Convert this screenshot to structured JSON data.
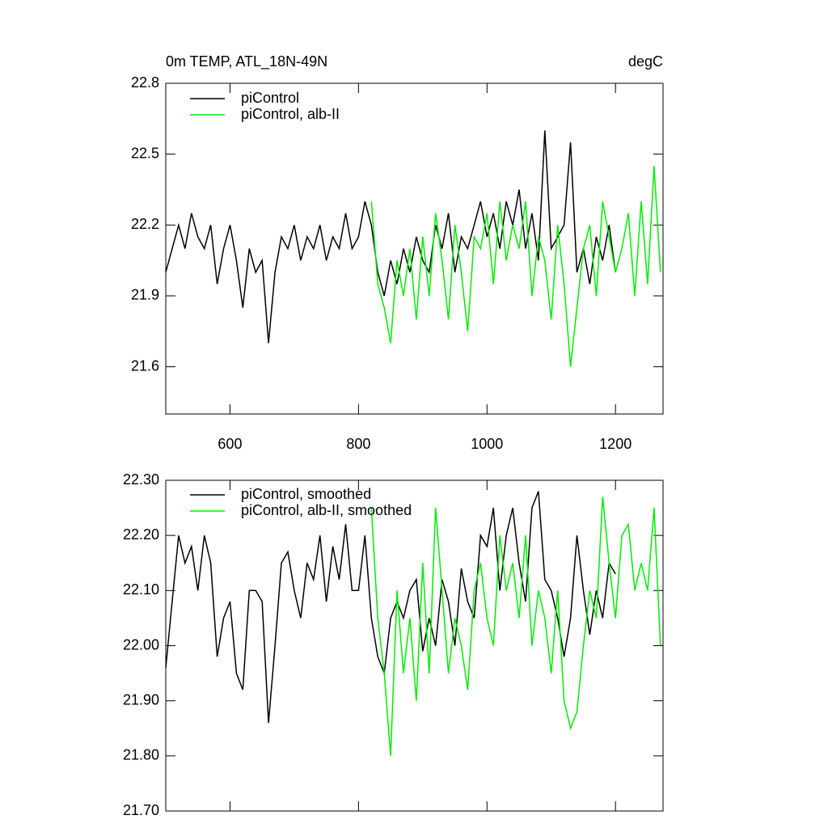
{
  "chart_data": [
    {
      "type": "line",
      "title": "0m TEMP, ATL_18N-49N",
      "units": "degC",
      "x": [
        500,
        510,
        520,
        530,
        540,
        550,
        560,
        570,
        580,
        590,
        600,
        610,
        620,
        630,
        640,
        650,
        660,
        670,
        680,
        690,
        700,
        710,
        720,
        730,
        740,
        750,
        760,
        770,
        780,
        790,
        800,
        810,
        820,
        830,
        840,
        850,
        860,
        870,
        880,
        890,
        900,
        910,
        920,
        930,
        940,
        950,
        960,
        970,
        980,
        990,
        1000,
        1010,
        1020,
        1030,
        1040,
        1050,
        1060,
        1070,
        1080,
        1090,
        1100,
        1110,
        1120,
        1130,
        1140,
        1150,
        1160,
        1170,
        1180,
        1190,
        1200,
        1210,
        1220,
        1230,
        1240,
        1250,
        1260,
        1270
      ],
      "series": [
        {
          "name": "piControl",
          "color": "#000000",
          "values": [
            22.0,
            22.1,
            22.2,
            22.1,
            22.25,
            22.15,
            22.1,
            22.2,
            21.95,
            22.1,
            22.2,
            22.05,
            21.85,
            22.1,
            22.0,
            22.05,
            21.7,
            22.0,
            22.15,
            22.1,
            22.2,
            22.05,
            22.15,
            22.1,
            22.2,
            22.05,
            22.15,
            22.1,
            22.25,
            22.1,
            22.15,
            22.3,
            22.2,
            22.0,
            21.9,
            22.05,
            21.95,
            22.1,
            22.0,
            22.15,
            22.05,
            22.0,
            22.2,
            22.1,
            22.25,
            22.0,
            22.15,
            22.1,
            22.2,
            22.3,
            22.15,
            22.25,
            22.1,
            22.3,
            22.2,
            22.35,
            22.1,
            22.25,
            22.05,
            22.6,
            22.1,
            22.15,
            22.2,
            22.55,
            22.0,
            22.1,
            21.95,
            22.15,
            22.05,
            22.2,
            22.0,
            null,
            null,
            null,
            null,
            null,
            null,
            null
          ]
        },
        {
          "name": "piControl, alb-II",
          "color": "#00ee00",
          "values": [
            null,
            null,
            null,
            null,
            null,
            null,
            null,
            null,
            null,
            null,
            null,
            null,
            null,
            null,
            null,
            null,
            null,
            null,
            null,
            null,
            null,
            null,
            null,
            null,
            null,
            null,
            null,
            null,
            null,
            null,
            null,
            null,
            22.3,
            21.95,
            21.85,
            21.7,
            22.05,
            21.9,
            22.1,
            21.8,
            22.15,
            21.9,
            22.25,
            22.05,
            21.8,
            22.2,
            22.0,
            21.75,
            22.15,
            22.1,
            22.25,
            21.95,
            22.3,
            22.05,
            22.2,
            22.1,
            22.3,
            21.9,
            22.15,
            22.05,
            21.8,
            22.2,
            21.95,
            21.6,
            21.85,
            22.1,
            22.2,
            21.9,
            22.3,
            22.15,
            22.0,
            22.1,
            22.25,
            21.9,
            22.3,
            21.95,
            22.45,
            22.0
          ]
        }
      ],
      "xlim": [
        500,
        1274
      ],
      "xticks": [
        600,
        800,
        1000,
        1200
      ],
      "ylim": [
        21.4,
        22.8
      ],
      "yticks": [
        21.6,
        21.9,
        22.2,
        22.5,
        22.8
      ]
    },
    {
      "type": "line",
      "x": [
        500,
        510,
        520,
        530,
        540,
        550,
        560,
        570,
        580,
        590,
        600,
        610,
        620,
        630,
        640,
        650,
        660,
        670,
        680,
        690,
        700,
        710,
        720,
        730,
        740,
        750,
        760,
        770,
        780,
        790,
        800,
        810,
        820,
        830,
        840,
        850,
        860,
        870,
        880,
        890,
        900,
        910,
        920,
        930,
        940,
        950,
        960,
        970,
        980,
        990,
        1000,
        1010,
        1020,
        1030,
        1040,
        1050,
        1060,
        1070,
        1080,
        1090,
        1100,
        1110,
        1120,
        1130,
        1140,
        1150,
        1160,
        1170,
        1180,
        1190,
        1200,
        1210,
        1220,
        1230,
        1240,
        1250,
        1260,
        1270
      ],
      "series": [
        {
          "name": "piControl, smoothed",
          "color": "#000000",
          "values": [
            21.96,
            22.08,
            22.2,
            22.15,
            22.18,
            22.1,
            22.2,
            22.15,
            21.98,
            22.05,
            22.08,
            21.95,
            21.92,
            22.1,
            22.1,
            22.08,
            21.86,
            22.0,
            22.15,
            22.17,
            22.1,
            22.05,
            22.15,
            22.12,
            22.2,
            22.08,
            22.18,
            22.12,
            22.22,
            22.1,
            22.1,
            22.2,
            22.05,
            21.98,
            21.95,
            22.05,
            22.08,
            22.05,
            22.1,
            22.12,
            21.99,
            22.05,
            22.0,
            22.12,
            22.08,
            22.0,
            22.14,
            22.08,
            22.05,
            22.2,
            22.18,
            22.25,
            22.1,
            22.2,
            22.25,
            22.15,
            22.08,
            22.25,
            22.28,
            22.12,
            22.1,
            22.05,
            21.98,
            22.05,
            22.2,
            22.1,
            22.02,
            22.1,
            22.05,
            22.15,
            22.13,
            null,
            null,
            null,
            null,
            null,
            null,
            null
          ]
        },
        {
          "name": "piControl, alb-II, smoothed",
          "color": "#00ee00",
          "values": [
            null,
            null,
            null,
            null,
            null,
            null,
            null,
            null,
            null,
            null,
            null,
            null,
            null,
            null,
            null,
            null,
            null,
            null,
            null,
            null,
            null,
            null,
            null,
            null,
            null,
            null,
            null,
            null,
            null,
            null,
            null,
            null,
            22.25,
            22.05,
            21.95,
            21.8,
            22.1,
            21.95,
            22.05,
            21.9,
            22.15,
            21.95,
            22.25,
            22.1,
            21.95,
            22.05,
            22.0,
            21.92,
            22.1,
            22.15,
            22.05,
            22.0,
            22.2,
            22.1,
            22.15,
            22.05,
            22.2,
            22.0,
            22.1,
            22.05,
            21.95,
            22.1,
            21.9,
            21.85,
            21.88,
            22.0,
            22.1,
            22.05,
            22.27,
            22.15,
            22.05,
            22.2,
            22.22,
            22.1,
            22.15,
            22.1,
            22.25,
            22.0
          ]
        }
      ],
      "xlim": [
        500,
        1274
      ],
      "xticks": [
        600,
        800,
        1000,
        1200
      ],
      "ylim": [
        21.7,
        22.3
      ],
      "yticks": [
        {
          "value": 21.7,
          "label": "21.70"
        },
        {
          "value": 21.8,
          "label": "21.80"
        },
        {
          "value": 21.9,
          "label": "21.90"
        },
        {
          "value": 22.0,
          "label": "22.00"
        },
        {
          "value": 22.1,
          "label": "22.10"
        },
        {
          "value": 22.2,
          "label": "22.20"
        },
        {
          "value": 22.3,
          "label": "22.30"
        }
      ]
    }
  ]
}
